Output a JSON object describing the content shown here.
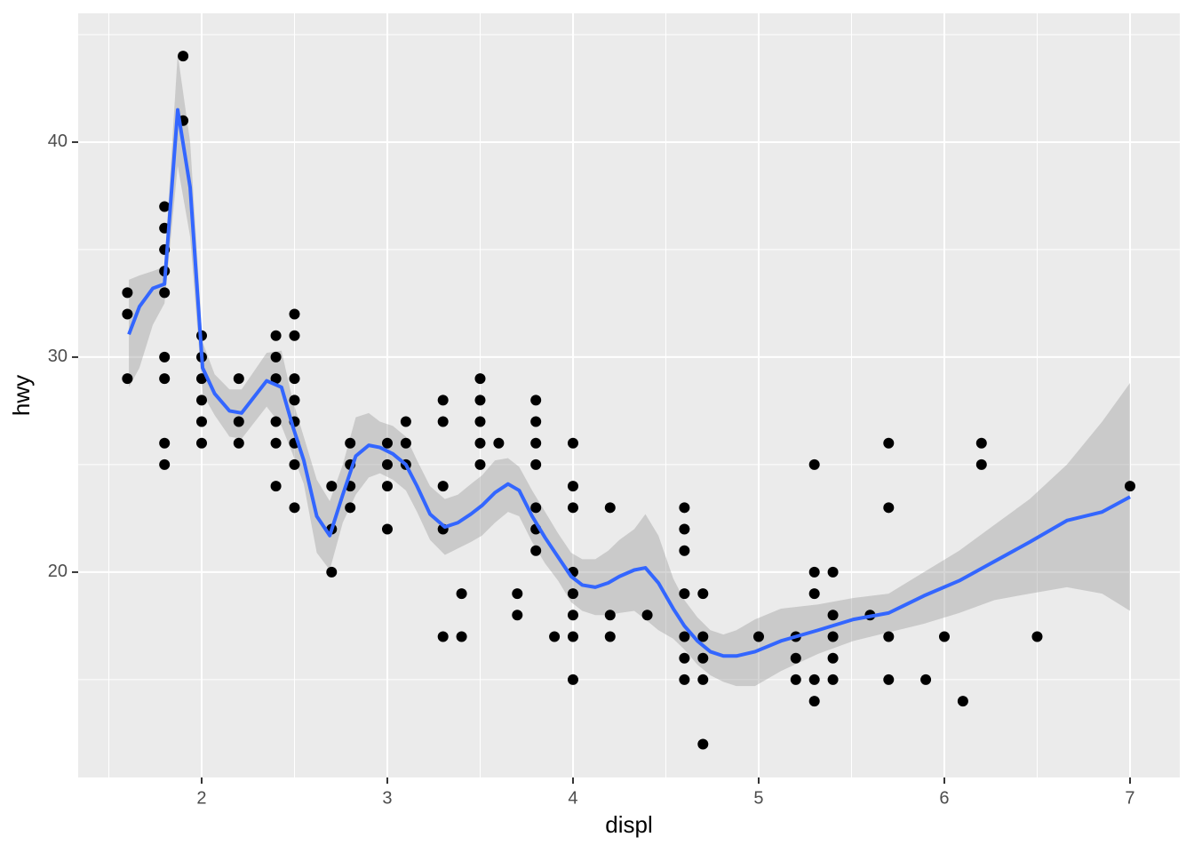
{
  "chart_data": {
    "type": "scatter",
    "x_label": "displ",
    "y_label": "hwy",
    "xlim": [
      1.335,
      7.268
    ],
    "ylim": [
      10.45,
      45.99
    ],
    "xticks": [
      2,
      3,
      4,
      5,
      6,
      7
    ],
    "yticks": [
      20,
      30,
      40
    ],
    "xminorticks": [
      1.5,
      2.5,
      3.5,
      4.5,
      5.5,
      6.5
    ],
    "yminorticks": [
      15,
      25,
      35,
      45
    ],
    "grid": true,
    "color": "#000000",
    "x": [
      1.6,
      1.6,
      1.6,
      1.8,
      1.8,
      1.8,
      1.8,
      1.8,
      1.8,
      1.8,
      1.8,
      1.8,
      1.9,
      1.9,
      2.0,
      2.0,
      2.0,
      2.0,
      2.0,
      2.0,
      2.2,
      2.2,
      2.2,
      2.4,
      2.4,
      2.4,
      2.4,
      2.4,
      2.4,
      2.5,
      2.5,
      2.5,
      2.5,
      2.5,
      2.5,
      2.5,
      2.5,
      2.7,
      2.7,
      2.7,
      2.8,
      2.8,
      2.8,
      2.8,
      3.0,
      3.0,
      3.0,
      3.0,
      3.1,
      3.1,
      3.1,
      3.3,
      3.3,
      3.3,
      3.3,
      3.3,
      3.4,
      3.4,
      3.5,
      3.5,
      3.5,
      3.5,
      3.5,
      3.6,
      3.7,
      3.7,
      3.8,
      3.8,
      3.8,
      3.8,
      3.8,
      3.8,
      3.8,
      3.9,
      4.0,
      4.0,
      4.0,
      4.0,
      4.0,
      4.0,
      4.0,
      4.0,
      4.2,
      4.2,
      4.2,
      4.4,
      4.6,
      4.6,
      4.6,
      4.6,
      4.6,
      4.6,
      4.6,
      4.7,
      4.7,
      4.7,
      4.7,
      4.7,
      5.0,
      5.2,
      5.2,
      5.2,
      5.3,
      5.3,
      5.3,
      5.3,
      5.3,
      5.4,
      5.4,
      5.4,
      5.4,
      5.4,
      5.6,
      5.7,
      5.7,
      5.7,
      5.7,
      5.9,
      6.0,
      6.1,
      6.2,
      6.2,
      6.5,
      7.0
    ],
    "values": [
      33,
      32,
      29,
      37,
      36,
      35,
      34,
      33,
      30,
      29,
      26,
      25,
      44,
      41,
      31,
      30,
      29,
      28,
      27,
      26,
      29,
      27,
      26,
      31,
      30,
      29,
      27,
      26,
      24,
      32,
      31,
      29,
      28,
      27,
      26,
      25,
      23,
      24,
      22,
      20,
      26,
      25,
      24,
      23,
      26,
      25,
      24,
      22,
      27,
      26,
      25,
      28,
      27,
      24,
      22,
      17,
      19,
      17,
      29,
      28,
      27,
      26,
      25,
      26,
      19,
      18,
      28,
      27,
      26,
      25,
      23,
      22,
      21,
      17,
      26,
      24,
      23,
      20,
      19,
      18,
      17,
      15,
      23,
      18,
      17,
      18,
      23,
      22,
      21,
      19,
      17,
      16,
      15,
      19,
      17,
      16,
      15,
      12,
      17,
      17,
      16,
      15,
      25,
      20,
      19,
      15,
      14,
      20,
      18,
      17,
      16,
      15,
      18,
      26,
      23,
      17,
      15,
      15,
      17,
      14,
      26,
      25,
      17,
      24
    ],
    "smooth": {
      "color": "#3366ff",
      "x": [
        1.608,
        1.665,
        1.737,
        1.8,
        1.871,
        1.938,
        2.005,
        2.07,
        2.15,
        2.215,
        2.35,
        2.43,
        2.49,
        2.55,
        2.62,
        2.69,
        2.76,
        2.83,
        2.9,
        2.96,
        3.03,
        3.1,
        3.16,
        3.23,
        3.31,
        3.38,
        3.45,
        3.51,
        3.58,
        3.65,
        3.71,
        3.78,
        3.85,
        3.92,
        3.99,
        4.05,
        4.12,
        4.19,
        4.25,
        4.33,
        4.39,
        4.46,
        4.54,
        4.6,
        4.67,
        4.74,
        4.81,
        4.88,
        4.98,
        5.12,
        5.32,
        5.51,
        5.7,
        5.89,
        6.08,
        6.27,
        6.46,
        6.66,
        6.85,
        7.0
      ],
      "values": [
        31.06,
        32.35,
        33.2,
        33.4,
        41.5,
        37.9,
        29.5,
        28.3,
        27.5,
        27.4,
        28.9,
        28.6,
        26.8,
        25.2,
        22.6,
        21.7,
        23.6,
        25.4,
        25.9,
        25.8,
        25.5,
        25,
        24,
        22.7,
        22.1,
        22.3,
        22.7,
        23.1,
        23.7,
        24.1,
        23.8,
        22.6,
        21.6,
        20.7,
        19.8,
        19.4,
        19.3,
        19.5,
        19.8,
        20.1,
        20.2,
        19.5,
        18.3,
        17.5,
        16.8,
        16.3,
        16.1,
        16.1,
        16.3,
        16.8,
        17.3,
        17.8,
        18.1,
        18.9,
        19.6,
        20.5,
        21.4,
        22.4,
        22.8,
        23.5
      ],
      "lower": [
        28.6,
        29.5,
        31.5,
        32.5,
        38.9,
        35.6,
        28.3,
        27.3,
        26.3,
        26.2,
        27.7,
        26.8,
        25.5,
        24.1,
        20.9,
        20.1,
        22.3,
        23.6,
        24.4,
        24.6,
        24.3,
        23.8,
        22.8,
        21.5,
        20.8,
        21.1,
        21.4,
        21.7,
        22.3,
        22.8,
        22.6,
        21.4,
        20.4,
        19.6,
        18.6,
        18.2,
        18.0,
        18.0,
        18.1,
        18.2,
        17.8,
        17.3,
        16.9,
        16.4,
        15.7,
        15.2,
        14.9,
        14.7,
        14.7,
        15.4,
        16.2,
        16.8,
        17.2,
        17.6,
        18.1,
        18.7,
        19.0,
        19.3,
        19.0,
        18.2
      ],
      "upper": [
        33.6,
        33.8,
        34.0,
        34.2,
        44.1,
        40.0,
        30.7,
        29.2,
        28.5,
        28.5,
        30.2,
        30.3,
        28.0,
        26.3,
        24.3,
        23.3,
        25.0,
        27.2,
        27.4,
        27.0,
        26.8,
        26.3,
        25.2,
        24.0,
        23.4,
        23.6,
        24.1,
        24.5,
        25.2,
        25.3,
        24.9,
        23.8,
        22.8,
        21.8,
        20.9,
        20.6,
        20.6,
        21.0,
        21.5,
        22.0,
        22.7,
        21.7,
        19.7,
        18.7,
        17.9,
        17.3,
        17.1,
        17.3,
        17.8,
        18.3,
        18.5,
        18.8,
        19.0,
        20.0,
        21.0,
        22.2,
        23.4,
        25.0,
        27.0,
        28.8
      ]
    }
  }
}
